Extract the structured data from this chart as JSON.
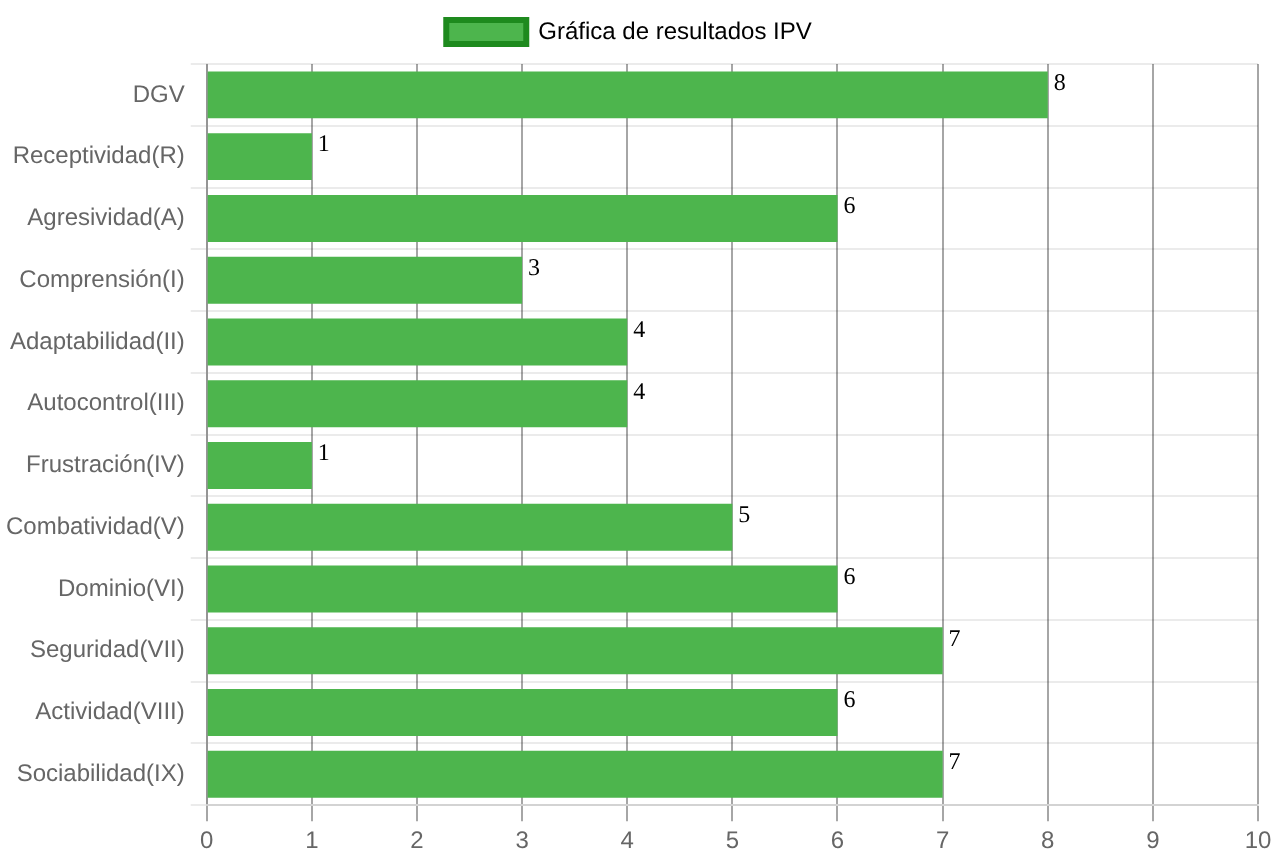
{
  "chart_data": {
    "type": "bar",
    "orientation": "horizontal",
    "categories": [
      "DGV",
      "Receptividad(R)",
      "Agresividad(A)",
      "Comprensión(I)",
      "Adaptabilidad(II)",
      "Autocontrol(III)",
      "Frustración(IV)",
      "Combatividad(V)",
      "Dominio(VI)",
      "Seguridad(VII)",
      "Actividad(VIII)",
      "Sociabilidad(IX)"
    ],
    "series": [
      {
        "name": "Gráfica de resultados IPV",
        "color": "#4db54d",
        "values": [
          8,
          1,
          6,
          3,
          4,
          4,
          1,
          5,
          6,
          7,
          6,
          7
        ]
      }
    ],
    "xlim": [
      0,
      10
    ],
    "xticks": [
      0,
      1,
      2,
      3,
      4,
      5,
      6,
      7,
      8,
      9,
      10
    ],
    "grid": true,
    "legend": "top",
    "data_labels": true
  }
}
